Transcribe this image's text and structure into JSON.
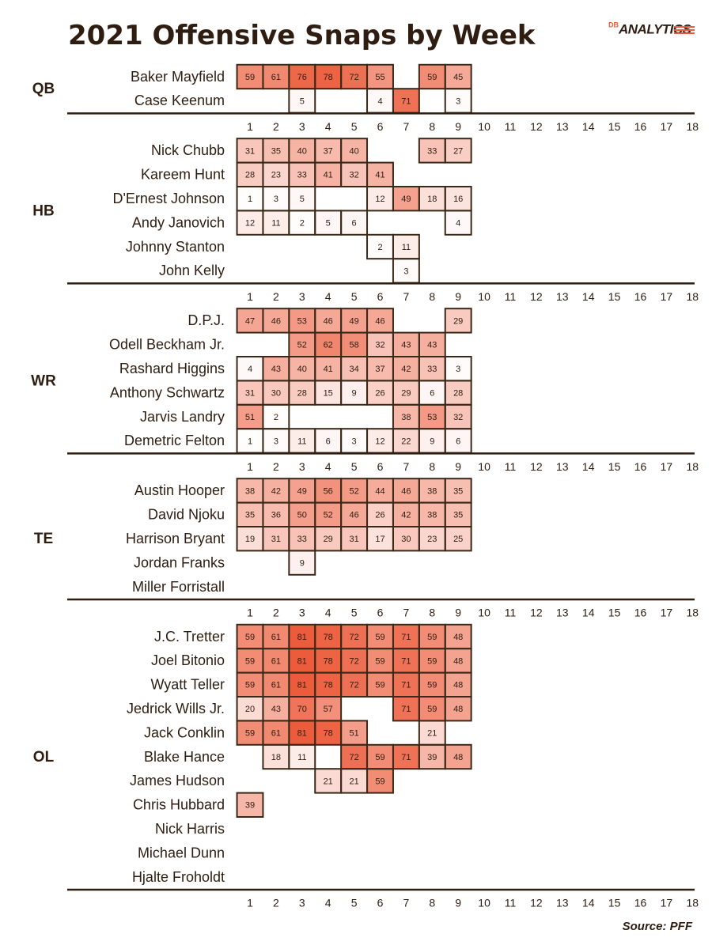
{
  "chart_data": {
    "type": "heatmap",
    "title": "2021 Offensive Snaps by Week",
    "logo_prefix": "DB",
    "logo": "ANALYTICS",
    "source": "Source: PFF",
    "colors": [
      "#ffffff",
      "#ec5c3c"
    ],
    "cell_border": "#3a2818",
    "weeks": [
      1,
      2,
      3,
      4,
      5,
      6,
      7,
      8,
      9,
      10,
      11,
      12,
      13,
      14,
      15,
      16,
      17,
      18
    ],
    "groups": [
      {
        "name": "QB",
        "players": [
          {
            "name": "Baker Mayfield",
            "values": [
              59,
              61,
              76,
              78,
              72,
              55,
              null,
              59,
              45,
              null,
              null,
              null,
              null,
              null,
              null,
              null,
              null,
              null
            ]
          },
          {
            "name": "Case Keenum",
            "values": [
              null,
              null,
              5,
              null,
              null,
              4,
              71,
              null,
              3,
              null,
              null,
              null,
              null,
              null,
              null,
              null,
              null,
              null
            ]
          }
        ]
      },
      {
        "name": "HB",
        "players": [
          {
            "name": "Nick Chubb",
            "values": [
              31,
              35,
              40,
              37,
              40,
              null,
              null,
              33,
              27,
              null,
              null,
              null,
              null,
              null,
              null,
              null,
              null,
              null
            ]
          },
          {
            "name": "Kareem Hunt",
            "values": [
              28,
              23,
              33,
              41,
              32,
              41,
              null,
              null,
              null,
              null,
              null,
              null,
              null,
              null,
              null,
              null,
              null,
              null
            ]
          },
          {
            "name": "D'Ernest Johnson",
            "values": [
              1,
              3,
              5,
              null,
              null,
              12,
              49,
              18,
              16,
              null,
              null,
              null,
              null,
              null,
              null,
              null,
              null,
              null
            ]
          },
          {
            "name": "Andy Janovich",
            "values": [
              12,
              11,
              2,
              5,
              6,
              null,
              null,
              null,
              4,
              null,
              null,
              null,
              null,
              null,
              null,
              null,
              null,
              null
            ]
          },
          {
            "name": "Johnny Stanton",
            "values": [
              null,
              null,
              null,
              null,
              null,
              2,
              11,
              null,
              null,
              null,
              null,
              null,
              null,
              null,
              null,
              null,
              null,
              null
            ]
          },
          {
            "name": "John Kelly",
            "values": [
              null,
              null,
              null,
              null,
              null,
              null,
              3,
              null,
              null,
              null,
              null,
              null,
              null,
              null,
              null,
              null,
              null,
              null
            ]
          }
        ]
      },
      {
        "name": "WR",
        "players": [
          {
            "name": "D.P.J.",
            "values": [
              47,
              46,
              53,
              46,
              49,
              46,
              null,
              null,
              29,
              null,
              null,
              null,
              null,
              null,
              null,
              null,
              null,
              null
            ]
          },
          {
            "name": "Odell Beckham Jr.",
            "values": [
              null,
              null,
              52,
              62,
              58,
              32,
              43,
              43,
              null,
              null,
              null,
              null,
              null,
              null,
              null,
              null,
              null,
              null
            ]
          },
          {
            "name": "Rashard Higgins",
            "values": [
              4,
              43,
              40,
              41,
              34,
              37,
              42,
              33,
              3,
              null,
              null,
              null,
              null,
              null,
              null,
              null,
              null,
              null
            ]
          },
          {
            "name": "Anthony Schwartz",
            "values": [
              31,
              30,
              28,
              15,
              9,
              26,
              29,
              6,
              28,
              null,
              null,
              null,
              null,
              null,
              null,
              null,
              null,
              null
            ]
          },
          {
            "name": "Jarvis Landry",
            "values": [
              51,
              2,
              null,
              null,
              null,
              null,
              38,
              53,
              32,
              null,
              null,
              null,
              null,
              null,
              null,
              null,
              null,
              null
            ]
          },
          {
            "name": "Demetric Felton",
            "values": [
              1,
              3,
              11,
              6,
              3,
              12,
              22,
              9,
              6,
              null,
              null,
              null,
              null,
              null,
              null,
              null,
              null,
              null
            ]
          }
        ]
      },
      {
        "name": "TE",
        "players": [
          {
            "name": "Austin Hooper",
            "values": [
              38,
              42,
              49,
              56,
              52,
              44,
              46,
              38,
              35,
              null,
              null,
              null,
              null,
              null,
              null,
              null,
              null,
              null
            ]
          },
          {
            "name": "David Njoku",
            "values": [
              35,
              36,
              50,
              52,
              46,
              26,
              42,
              38,
              35,
              null,
              null,
              null,
              null,
              null,
              null,
              null,
              null,
              null
            ]
          },
          {
            "name": "Harrison Bryant",
            "values": [
              19,
              31,
              33,
              29,
              31,
              17,
              30,
              23,
              25,
              null,
              null,
              null,
              null,
              null,
              null,
              null,
              null,
              null
            ]
          },
          {
            "name": "Jordan Franks",
            "values": [
              null,
              null,
              9,
              null,
              null,
              null,
              null,
              null,
              null,
              null,
              null,
              null,
              null,
              null,
              null,
              null,
              null,
              null
            ]
          },
          {
            "name": "Miller Forristall",
            "values": [
              null,
              null,
              null,
              null,
              null,
              null,
              null,
              null,
              null,
              null,
              null,
              null,
              null,
              null,
              null,
              null,
              null,
              null
            ]
          }
        ]
      },
      {
        "name": "OL",
        "players": [
          {
            "name": "J.C. Tretter",
            "values": [
              59,
              61,
              81,
              78,
              72,
              59,
              71,
              59,
              48,
              null,
              null,
              null,
              null,
              null,
              null,
              null,
              null,
              null
            ]
          },
          {
            "name": "Joel Bitonio",
            "values": [
              59,
              61,
              81,
              78,
              72,
              59,
              71,
              59,
              48,
              null,
              null,
              null,
              null,
              null,
              null,
              null,
              null,
              null
            ]
          },
          {
            "name": "Wyatt Teller",
            "values": [
              59,
              61,
              81,
              78,
              72,
              59,
              71,
              59,
              48,
              null,
              null,
              null,
              null,
              null,
              null,
              null,
              null,
              null
            ]
          },
          {
            "name": "Jedrick Wills Jr.",
            "values": [
              20,
              43,
              70,
              57,
              null,
              null,
              71,
              59,
              48,
              null,
              null,
              null,
              null,
              null,
              null,
              null,
              null,
              null
            ]
          },
          {
            "name": "Jack Conklin",
            "values": [
              59,
              61,
              81,
              78,
              51,
              null,
              null,
              21,
              null,
              null,
              null,
              null,
              null,
              null,
              null,
              null,
              null,
              null
            ]
          },
          {
            "name": "Blake Hance",
            "values": [
              null,
              18,
              11,
              null,
              72,
              59,
              71,
              39,
              48,
              null,
              null,
              null,
              null,
              null,
              null,
              null,
              null,
              null
            ]
          },
          {
            "name": "James Hudson",
            "values": [
              null,
              null,
              null,
              21,
              21,
              59,
              null,
              null,
              null,
              null,
              null,
              null,
              null,
              null,
              null,
              null,
              null,
              null
            ]
          },
          {
            "name": "Chris Hubbard",
            "values": [
              39,
              null,
              null,
              null,
              null,
              null,
              null,
              null,
              null,
              null,
              null,
              null,
              null,
              null,
              null,
              null,
              null,
              null
            ]
          },
          {
            "name": "Nick Harris",
            "values": [
              null,
              null,
              null,
              null,
              null,
              null,
              null,
              null,
              null,
              null,
              null,
              null,
              null,
              null,
              null,
              null,
              null,
              null
            ]
          },
          {
            "name": "Michael Dunn",
            "values": [
              null,
              null,
              null,
              null,
              null,
              null,
              null,
              null,
              null,
              null,
              null,
              null,
              null,
              null,
              null,
              null,
              null,
              null
            ]
          },
          {
            "name": "Hjalte Froholdt",
            "values": [
              null,
              null,
              null,
              null,
              null,
              null,
              null,
              null,
              null,
              null,
              null,
              null,
              null,
              null,
              null,
              null,
              null,
              null
            ]
          }
        ]
      }
    ]
  }
}
